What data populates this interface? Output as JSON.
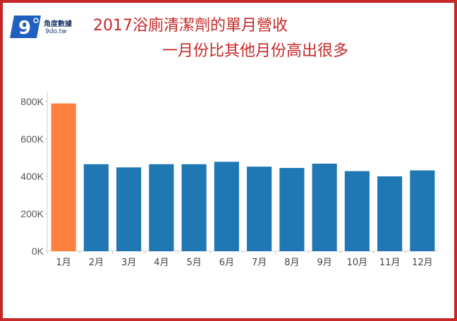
{
  "header": {
    "logo_name": "角度數據",
    "logo_url": "9do.tw",
    "title_line1": "2017浴廁清潔劑的單月營收",
    "title_line2": "一月份比其他月份高出很多"
  },
  "colors": {
    "frame": "#c62828",
    "bar": "#1f77b4",
    "highlight": "#ff7f3f",
    "logo_blue": "#1f5fbf"
  },
  "chart_data": {
    "type": "bar",
    "title": "2017浴廁清潔劑的單月營收",
    "subtitle": "一月份比其他月份高出很多",
    "categories": [
      "1月",
      "2月",
      "3月",
      "4月",
      "5月",
      "6月",
      "7月",
      "8月",
      "9月",
      "10月",
      "11月",
      "12月"
    ],
    "values": [
      790000,
      465000,
      448000,
      465000,
      465000,
      478000,
      452000,
      445000,
      468000,
      428000,
      400000,
      432000
    ],
    "highlight_index": 0,
    "yticks": [
      0,
      200000,
      400000,
      600000,
      800000
    ],
    "ytick_labels": [
      "0K",
      "200K",
      "400K",
      "600K",
      "800K"
    ],
    "ylim": [
      0,
      830000
    ],
    "grid": false,
    "legend": "none"
  }
}
